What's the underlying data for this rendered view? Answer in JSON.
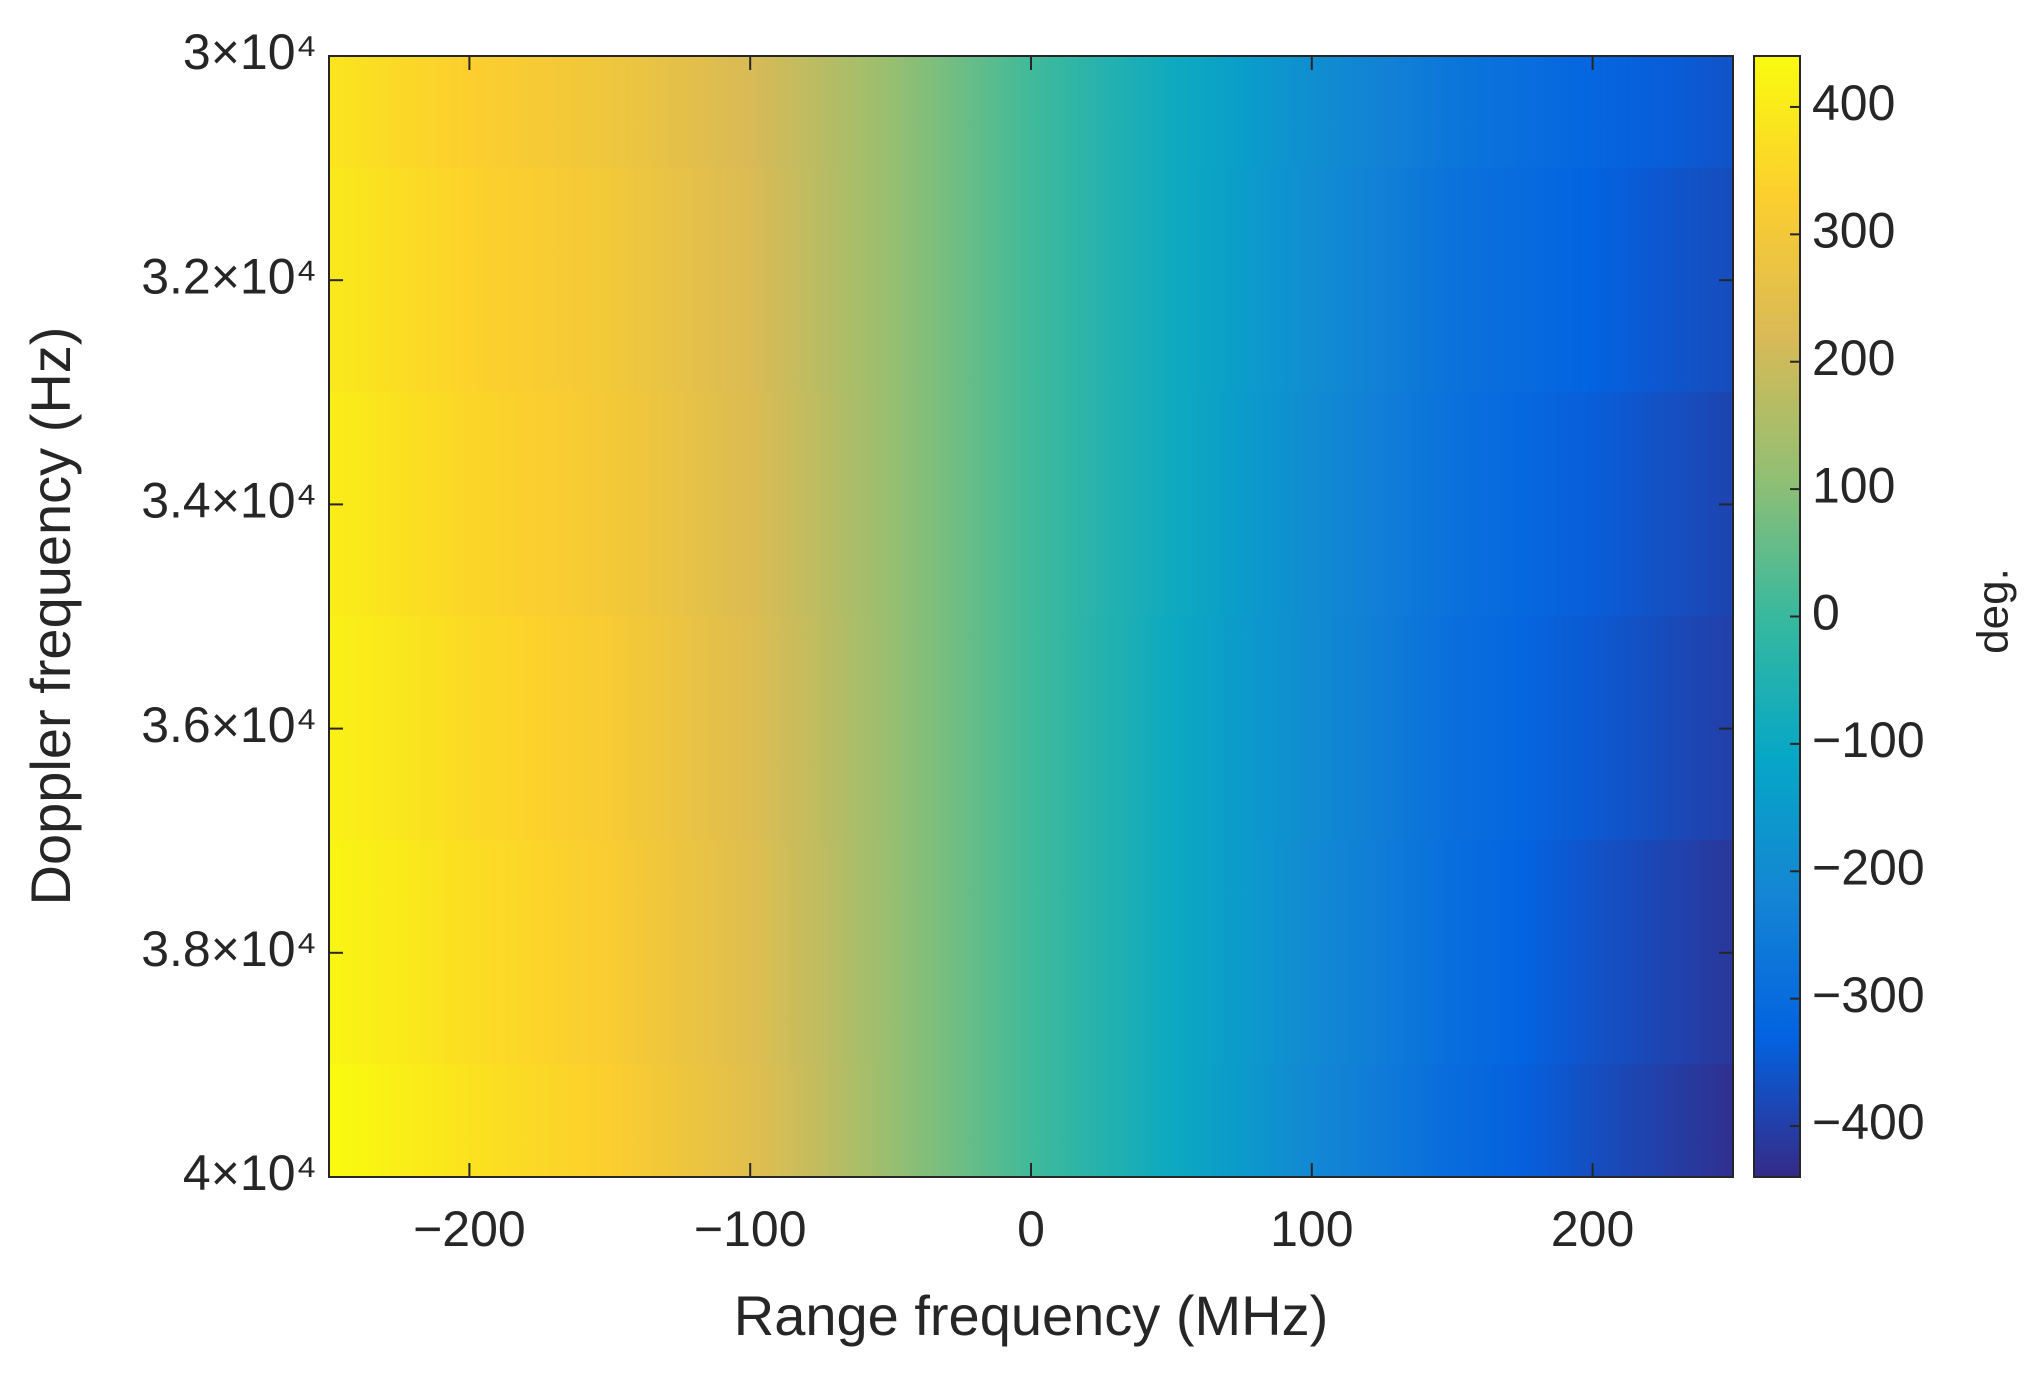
{
  "chart_data": {
    "type": "heatmap",
    "x_label": "Range frequency (MHz)",
    "y_label": "Doppler frequency (Hz)",
    "colorbar_label": "deg.",
    "colormap": "parula",
    "x": [
      -250,
      -200,
      -150,
      -100,
      -50,
      0,
      50,
      100,
      150,
      200,
      250
    ],
    "y": [
      30000,
      32000,
      34000,
      36000,
      38000,
      40000
    ],
    "z": [
      [
        385,
        330,
        290,
        220,
        120,
        10,
        -90,
        -190,
        -270,
        -320,
        -360
      ],
      [
        395,
        340,
        300,
        225,
        120,
        10,
        -90,
        -195,
        -280,
        -330,
        -375
      ],
      [
        405,
        350,
        305,
        230,
        120,
        10,
        -90,
        -200,
        -285,
        -340,
        -390
      ],
      [
        415,
        360,
        315,
        235,
        120,
        10,
        -95,
        -200,
        -290,
        -350,
        -400
      ],
      [
        425,
        370,
        320,
        240,
        120,
        10,
        -95,
        -205,
        -295,
        -360,
        -415
      ],
      [
        440,
        380,
        330,
        245,
        120,
        10,
        -95,
        -210,
        -300,
        -370,
        -430
      ]
    ],
    "xlim": [
      -250,
      250
    ],
    "xticks": [
      {
        "value": -200,
        "label": "−200"
      },
      {
        "value": -100,
        "label": "−100"
      },
      0,
      100,
      200
    ],
    "ylim": [
      30000,
      40000
    ],
    "y_reversed": true,
    "yticks": [
      {
        "value": 30000,
        "label": "3×10⁴"
      },
      {
        "value": 32000,
        "label": "3.2×10⁴"
      },
      {
        "value": 34000,
        "label": "3.4×10⁴"
      },
      {
        "value": 36000,
        "label": "3.6×10⁴"
      },
      {
        "value": 38000,
        "label": "3.8×10⁴"
      },
      {
        "value": 40000,
        "label": "4×10⁴"
      }
    ],
    "zlim": [
      -440,
      440
    ],
    "zticks": [
      {
        "value": -400,
        "label": "−400"
      },
      {
        "value": -300,
        "label": "−300"
      },
      {
        "value": -200,
        "label": "−200"
      },
      {
        "value": -100,
        "label": "−100"
      },
      0,
      100,
      200,
      300,
      400
    ]
  }
}
